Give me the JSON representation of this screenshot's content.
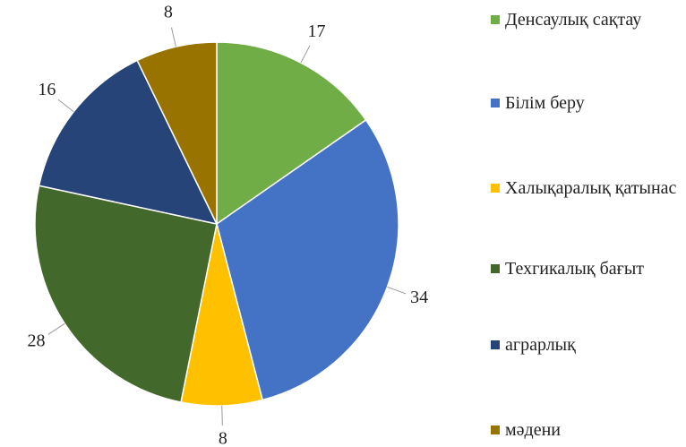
{
  "chart_data": {
    "type": "pie",
    "categories": [
      "Денсаулық сақтау",
      "Білім беру",
      "Халықаралық қатынас",
      "Техгикалық бағыт",
      "аграрлық",
      "мәдени"
    ],
    "values": [
      17,
      34,
      8,
      28,
      16,
      8
    ],
    "colors": [
      "#70ad47",
      "#4472c4",
      "#ffc000",
      "#43682b",
      "#264478",
      "#997300"
    ],
    "legend": "right"
  }
}
